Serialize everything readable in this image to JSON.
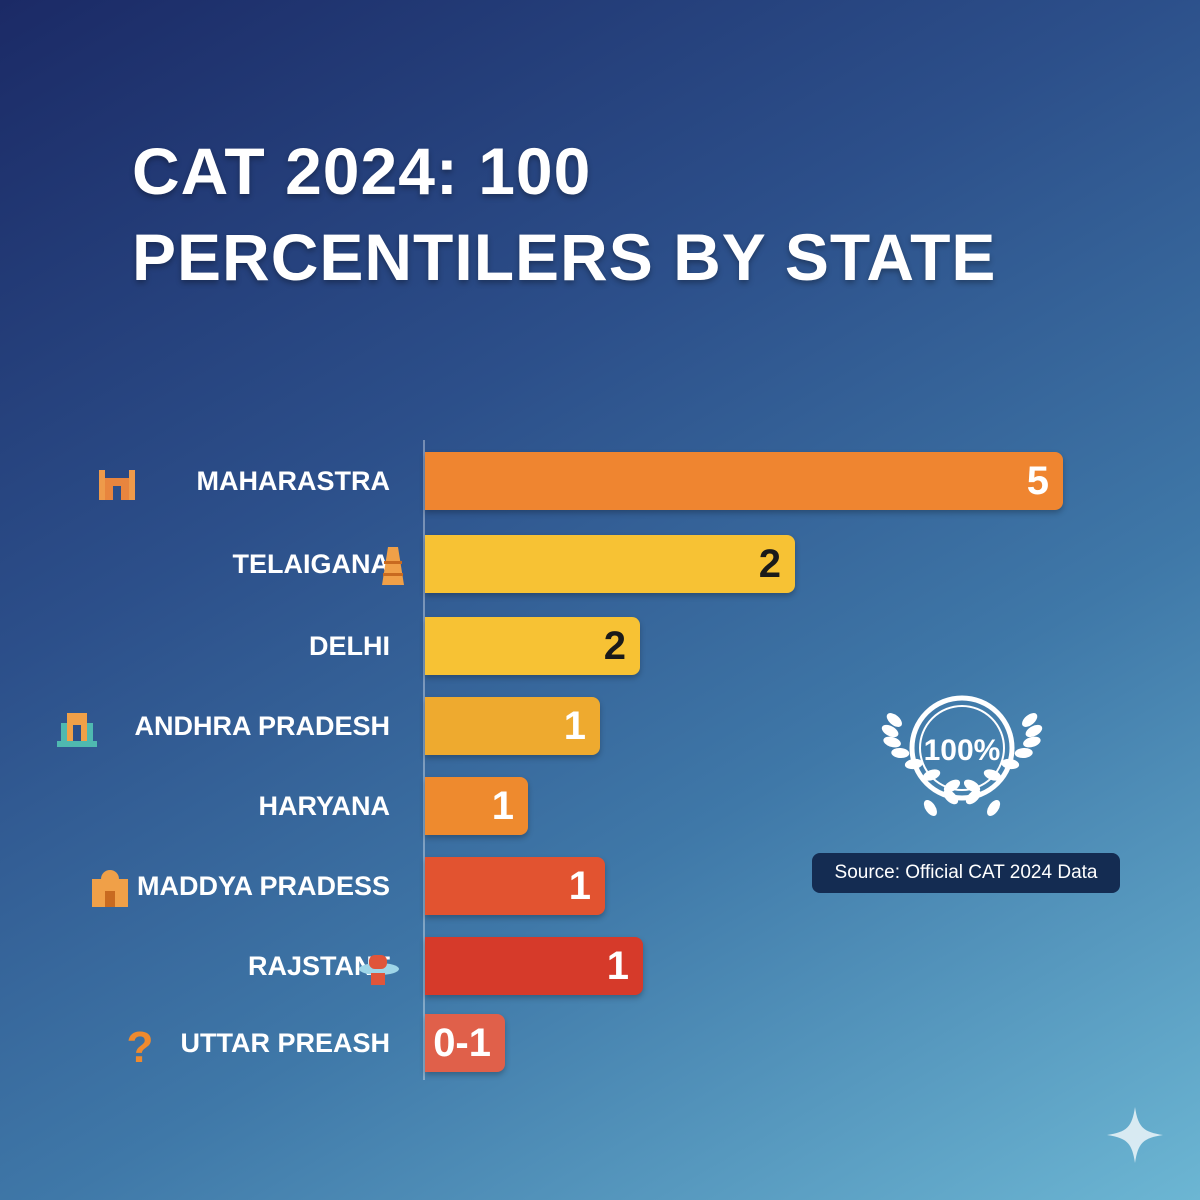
{
  "chart_data": {
    "type": "bar",
    "orientation": "horizontal",
    "title": "CAT 2024: 100 PERCENTILERS BY STATE",
    "title_lines": [
      "CAT 2024: 100",
      "PERCENTILERS BY STATE"
    ],
    "categories": [
      "MAHARASTRA",
      "TELAIGANA",
      "DELHI",
      "ANDHRA PRADESH",
      "HARYANA",
      "MADDYA PRADESS",
      "RAJSTANT",
      "UTTAR PREASH"
    ],
    "values": [
      5,
      2,
      2,
      1,
      1,
      1,
      1,
      "0-1"
    ],
    "value_labels": [
      "5",
      "2",
      "2",
      "1",
      "1",
      "1",
      "1",
      "0-1"
    ],
    "colors": [
      "#ef8530",
      "#f7c234",
      "#f7c234",
      "#eeaa2f",
      "#ee8a2e",
      "#e25330",
      "#d63a2a",
      "#e0604a"
    ],
    "value_label_colors": [
      "#ffffff",
      "#1a1a1a",
      "#1a1a1a",
      "#ffffff",
      "#ffffff",
      "#ffffff",
      "#ffffff",
      "#ffffff"
    ],
    "icons": [
      "monument-icon",
      "tower-icon",
      null,
      "gateway-icon",
      null,
      "palace-icon",
      "turban-icon",
      "question-icon"
    ],
    "grid": false
  },
  "badge": {
    "text": "100%",
    "icon": "laurel-wreath-icon"
  },
  "source": "Source: Official CAT 2024 Data",
  "watermark_icon": "sparkle-icon"
}
